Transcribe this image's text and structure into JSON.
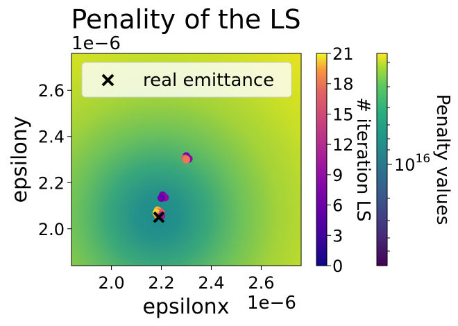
{
  "chart_data": {
    "type": "heatmap",
    "title": "Penality of the LS",
    "xlabel": "epsilonx",
    "ylabel": "epsilony",
    "x_offset_label": "1e−6",
    "y_offset_label": "1e−6",
    "xlim": [
      1.84,
      2.76
    ],
    "ylim": [
      1.84,
      2.76
    ],
    "x_ticks": [
      2.0,
      2.2,
      2.4,
      2.6
    ],
    "x_tick_labels": [
      "2.0",
      "2.2",
      "2.4",
      "2.6"
    ],
    "y_ticks": [
      2.0,
      2.2,
      2.4,
      2.6
    ],
    "y_tick_labels": [
      "2.0",
      "2.2",
      "2.4",
      "2.6"
    ],
    "heatmap": {
      "description_min_at": [
        2.19,
        2.04
      ],
      "colormap": "viridis"
    },
    "iteration_points": [
      {
        "x": 2.3,
        "y": 2.315,
        "iter": 5
      },
      {
        "x": 2.31,
        "y": 2.303,
        "iter": 6
      },
      {
        "x": 2.295,
        "y": 2.305,
        "iter": 12
      },
      {
        "x": 2.3,
        "y": 2.3,
        "iter": 14
      },
      {
        "x": 2.205,
        "y": 2.145,
        "iter": 5
      },
      {
        "x": 2.215,
        "y": 2.135,
        "iter": 6
      },
      {
        "x": 2.2,
        "y": 2.133,
        "iter": 4
      },
      {
        "x": 2.185,
        "y": 2.08,
        "iter": 18
      },
      {
        "x": 2.192,
        "y": 2.075,
        "iter": 15
      },
      {
        "x": 2.2,
        "y": 2.07,
        "iter": 12
      },
      {
        "x": 2.18,
        "y": 2.068,
        "iter": 20
      },
      {
        "x": 2.195,
        "y": 2.06,
        "iter": 9
      },
      {
        "x": 2.185,
        "y": 2.058,
        "iter": 16
      },
      {
        "x": 2.2,
        "y": 2.055,
        "iter": 7
      }
    ],
    "real_emittance": {
      "x": 2.19,
      "y": 2.05
    },
    "legend": {
      "label": "real emittance",
      "placement": "upper-left"
    },
    "colorbar_iteration": {
      "label": "# iteration LS",
      "range": [
        0,
        21
      ],
      "ticks": [
        0,
        3,
        6,
        9,
        12,
        15,
        18,
        21
      ],
      "tick_labels": [
        "0",
        "3",
        "6",
        "9",
        "12",
        "15",
        "18",
        "21"
      ],
      "colormap": "plasma"
    },
    "colorbar_penalty": {
      "label": "Penalty values",
      "tick_label_base": "10",
      "tick_label_exp": "16",
      "scale": "log",
      "colormap": "viridis"
    },
    "colors": {
      "marker_x": "#000000"
    }
  }
}
